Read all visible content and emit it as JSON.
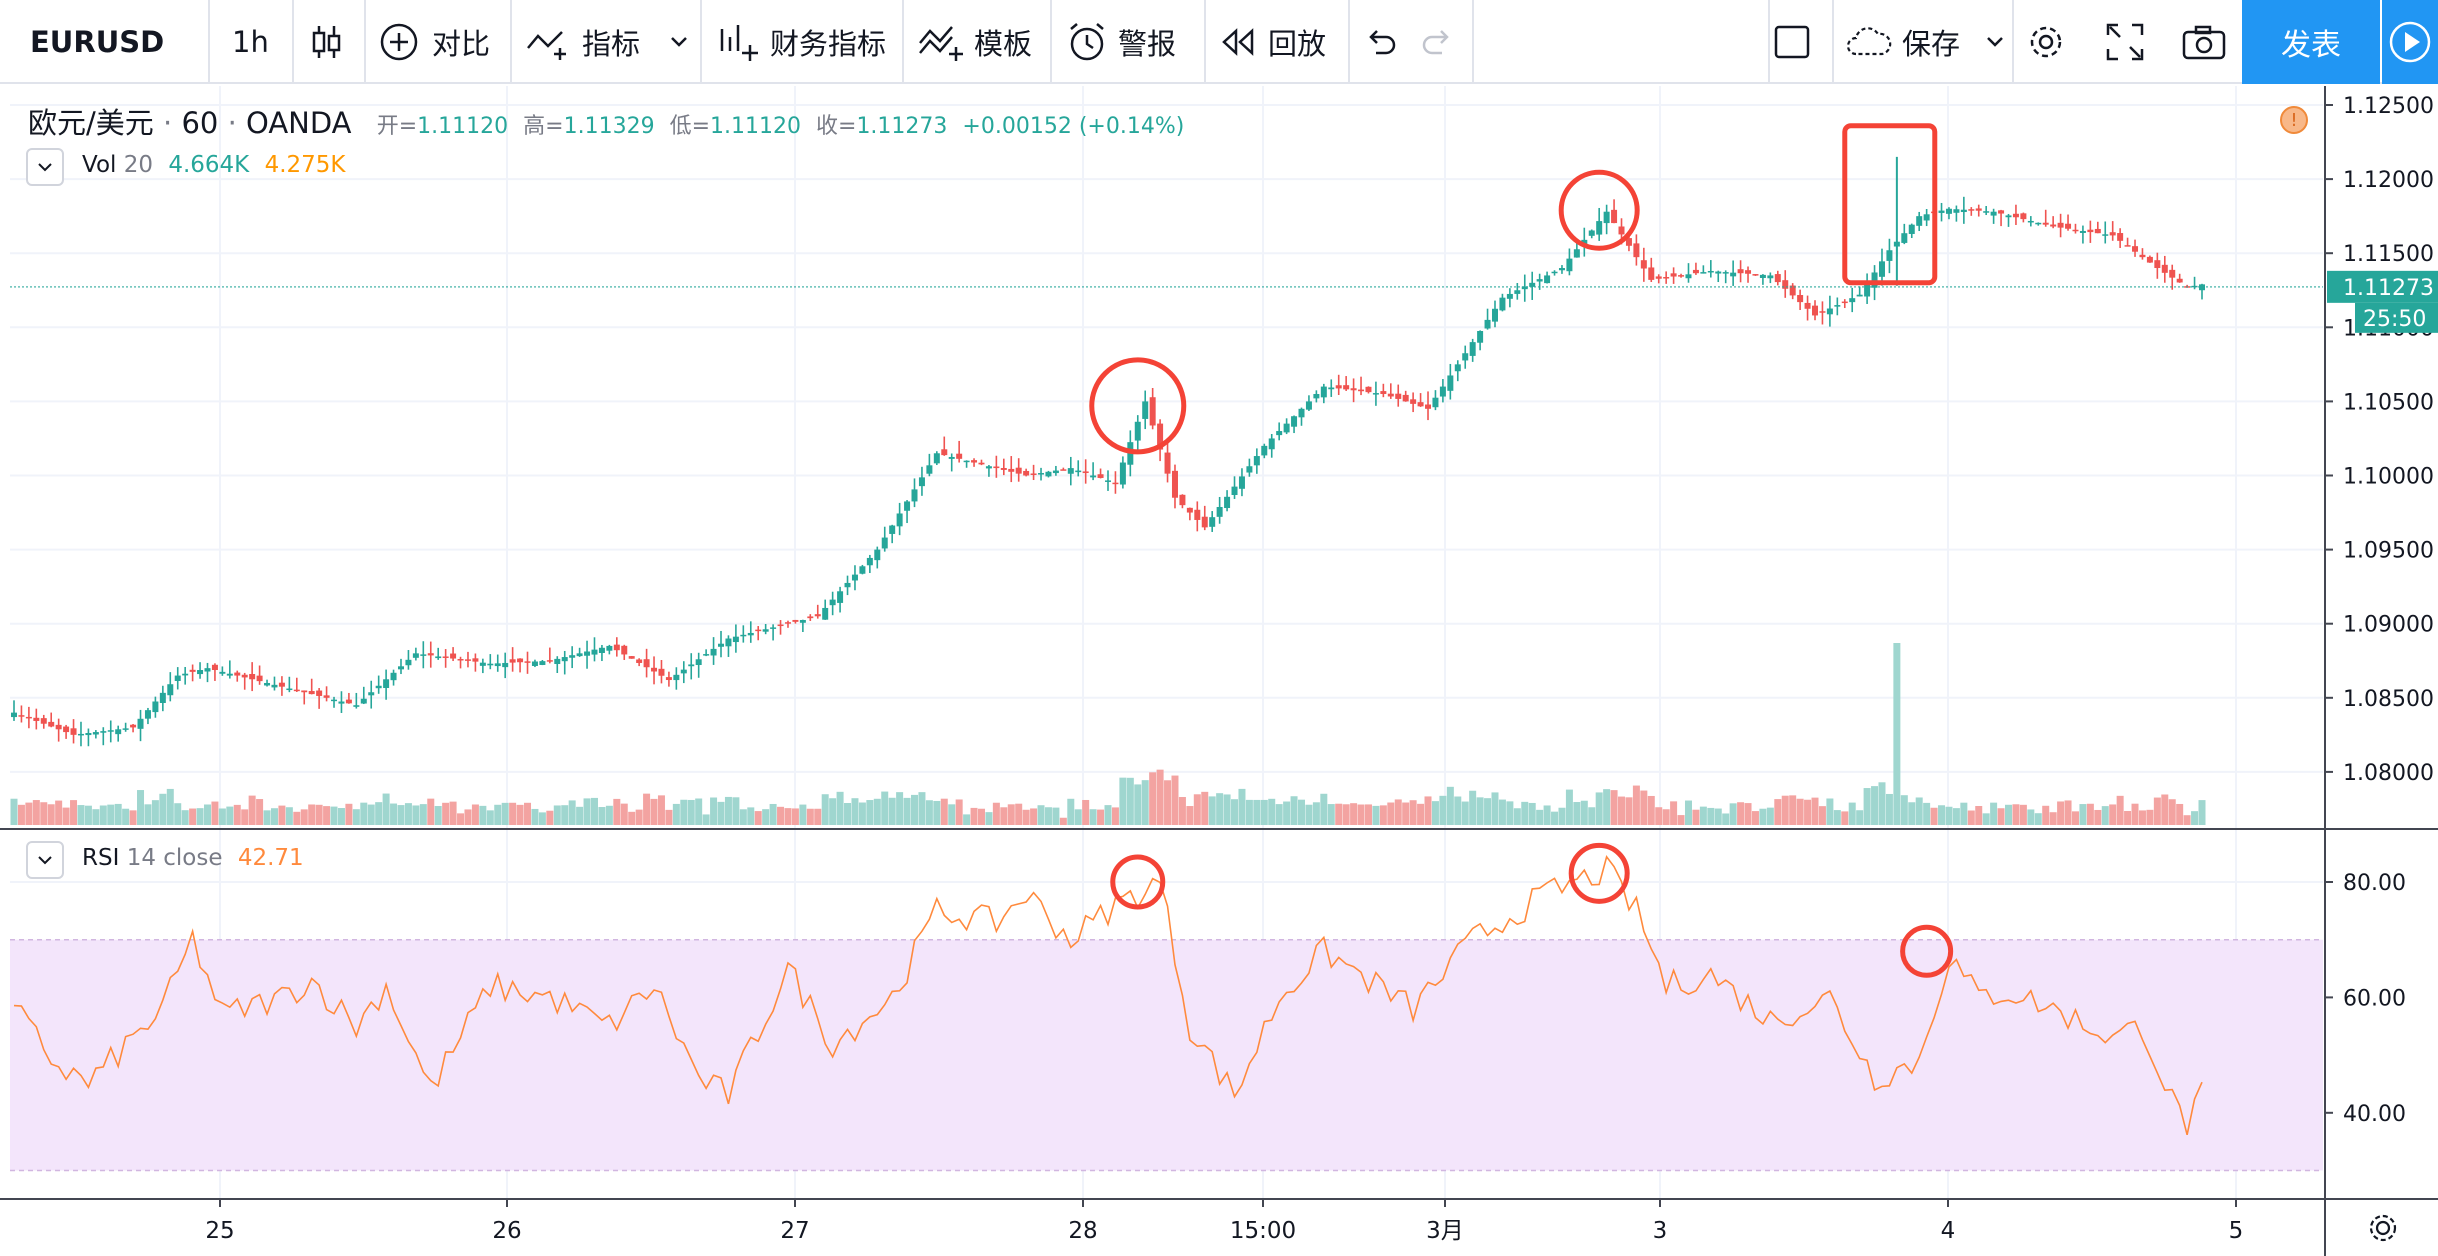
{
  "toolbar": {
    "symbol": "EURUSD",
    "interval": "1h",
    "compare_label": "对比",
    "indicators_label": "指标",
    "financials_label": "财务指标",
    "templates_label": "模板",
    "alert_label": "警报",
    "replay_label": "回放",
    "save_label": "保存",
    "publish_label": "发表",
    "icons": [
      "candles-icon",
      "plus-circle-icon",
      "indicator-icon",
      "financials-icon",
      "template-icon",
      "alarm-clock-icon",
      "replay-icon",
      "undo-icon",
      "redo-icon",
      "layout-square-icon",
      "cloud-icon",
      "gear-icon",
      "fullscreen-icon",
      "camera-icon",
      "play-icon"
    ]
  },
  "legend": {
    "title": "欧元/美元",
    "interval": "60",
    "exchange": "OANDA",
    "open_label": "开=",
    "open": "1.11120",
    "high_label": "高=",
    "high": "1.11329",
    "low_label": "低=",
    "low": "1.11120",
    "close_label": "收=",
    "close": "1.11273",
    "change": "+0.00152 (+0.14%)"
  },
  "volume_legend": {
    "name": "Vol",
    "length": "20",
    "value1": "4.664K",
    "value2": "4.275K"
  },
  "rsi_legend": {
    "name": "RSI",
    "params": "14 close",
    "value": "42.71"
  },
  "price_axis": {
    "ticks": [
      "1.12500",
      "1.12000",
      "1.11500",
      "1.11000",
      "1.10500",
      "1.10000",
      "1.09500",
      "1.09000",
      "1.08500",
      "1.08000"
    ],
    "current_price": "1.11273",
    "countdown": "25:50"
  },
  "rsi_axis": {
    "ticks": [
      "80.00",
      "60.00",
      "40.00"
    ]
  },
  "time_axis": {
    "labels": [
      "25",
      "26",
      "27",
      "28",
      "15:00",
      "3月",
      "3",
      "4",
      "5"
    ]
  },
  "colors": {
    "up": "#26a69a",
    "down": "#ef5350",
    "rsi": "#ff8a3d",
    "rsi_band": "#f3e5fb",
    "annotation": "#f44336",
    "toolbar_accent": "#2196f3"
  },
  "chart_data": [
    {
      "type": "candlestick",
      "title": "欧元/美元 · 60 · OANDA",
      "x_labels": [
        "25",
        "26",
        "27",
        "28",
        "15:00",
        "3月",
        "3",
        "4",
        "5"
      ],
      "ylim": [
        1.0765,
        1.1275
      ],
      "y_ticks": [
        1.125,
        1.12,
        1.115,
        1.11,
        1.105,
        1.1,
        1.095,
        1.09,
        1.085,
        1.08
      ],
      "anchors": [
        [
          0,
          1.084
        ],
        [
          8,
          1.0825
        ],
        [
          16,
          1.083
        ],
        [
          22,
          1.0865
        ],
        [
          26,
          1.087
        ],
        [
          38,
          1.0855
        ],
        [
          46,
          1.0845
        ],
        [
          54,
          1.088
        ],
        [
          64,
          1.0873
        ],
        [
          72,
          1.0875
        ],
        [
          80,
          1.0885
        ],
        [
          88,
          1.0862
        ],
        [
          96,
          1.089
        ],
        [
          108,
          1.0905
        ],
        [
          116,
          1.095
        ],
        [
          124,
          1.1015
        ],
        [
          136,
          1.1
        ],
        [
          142,
          1.1005
        ],
        [
          148,
          1.0995
        ],
        [
          152,
          1.105
        ],
        [
          156,
          1.0985
        ],
        [
          160,
          1.0965
        ],
        [
          168,
          1.102
        ],
        [
          176,
          1.106
        ],
        [
          184,
          1.1055
        ],
        [
          190,
          1.1045
        ],
        [
          200,
          1.112
        ],
        [
          208,
          1.114
        ],
        [
          214,
          1.1178
        ],
        [
          220,
          1.1132
        ],
        [
          228,
          1.1138
        ],
        [
          236,
          1.1135
        ],
        [
          242,
          1.1108
        ],
        [
          248,
          1.1122
        ],
        [
          252,
          1.1152
        ],
        [
          256,
          1.1175
        ],
        [
          260,
          1.118
        ],
        [
          266,
          1.1178
        ],
        [
          274,
          1.1168
        ],
        [
          282,
          1.1162
        ],
        [
          288,
          1.114
        ],
        [
          292,
          1.1127
        ]
      ],
      "current_price": 1.11273,
      "annotations": [
        "circle ~1.105 near 15:00 (Mar 2)",
        "circle ~1.118 near day 3",
        "rectangle spike ~1.121 near day 4"
      ]
    },
    {
      "type": "bar",
      "title": "Vol 20",
      "values_shape": "volume bars colored by candle direction, spike near day 4",
      "last": "4.664K",
      "ma": "4.275K"
    },
    {
      "type": "line",
      "title": "RSI 14 close",
      "ylim": [
        25,
        90
      ],
      "y_ticks": [
        80,
        60,
        40
      ],
      "band": [
        30,
        70
      ],
      "anchors": [
        [
          0,
          58
        ],
        [
          6,
          48
        ],
        [
          10,
          45
        ],
        [
          20,
          58
        ],
        [
          24,
          70
        ],
        [
          28,
          57
        ],
        [
          36,
          60
        ],
        [
          40,
          63
        ],
        [
          46,
          55
        ],
        [
          50,
          62
        ],
        [
          56,
          44
        ],
        [
          64,
          62
        ],
        [
          72,
          60
        ],
        [
          80,
          55
        ],
        [
          86,
          62
        ],
        [
          92,
          46
        ],
        [
          96,
          43
        ],
        [
          104,
          65
        ],
        [
          110,
          52
        ],
        [
          118,
          60
        ],
        [
          124,
          75
        ],
        [
          132,
          73
        ],
        [
          136,
          78
        ],
        [
          142,
          70
        ],
        [
          148,
          76
        ],
        [
          154,
          80
        ],
        [
          158,
          55
        ],
        [
          164,
          43
        ],
        [
          170,
          60
        ],
        [
          176,
          68
        ],
        [
          182,
          63
        ],
        [
          188,
          58
        ],
        [
          196,
          70
        ],
        [
          206,
          78
        ],
        [
          214,
          82
        ],
        [
          218,
          75
        ],
        [
          222,
          62
        ],
        [
          228,
          64
        ],
        [
          236,
          56
        ],
        [
          244,
          60
        ],
        [
          250,
          46
        ],
        [
          256,
          49
        ],
        [
          260,
          67
        ],
        [
          264,
          60
        ],
        [
          268,
          61
        ],
        [
          274,
          58
        ],
        [
          282,
          53
        ],
        [
          286,
          55
        ],
        [
          290,
          42
        ],
        [
          292,
          38
        ],
        [
          294,
          43
        ]
      ],
      "last": 42.71,
      "annotations": [
        "circle ~80 near 15:00",
        "circle ~83 near day 3",
        "circle ~68 near day 4"
      ]
    }
  ]
}
